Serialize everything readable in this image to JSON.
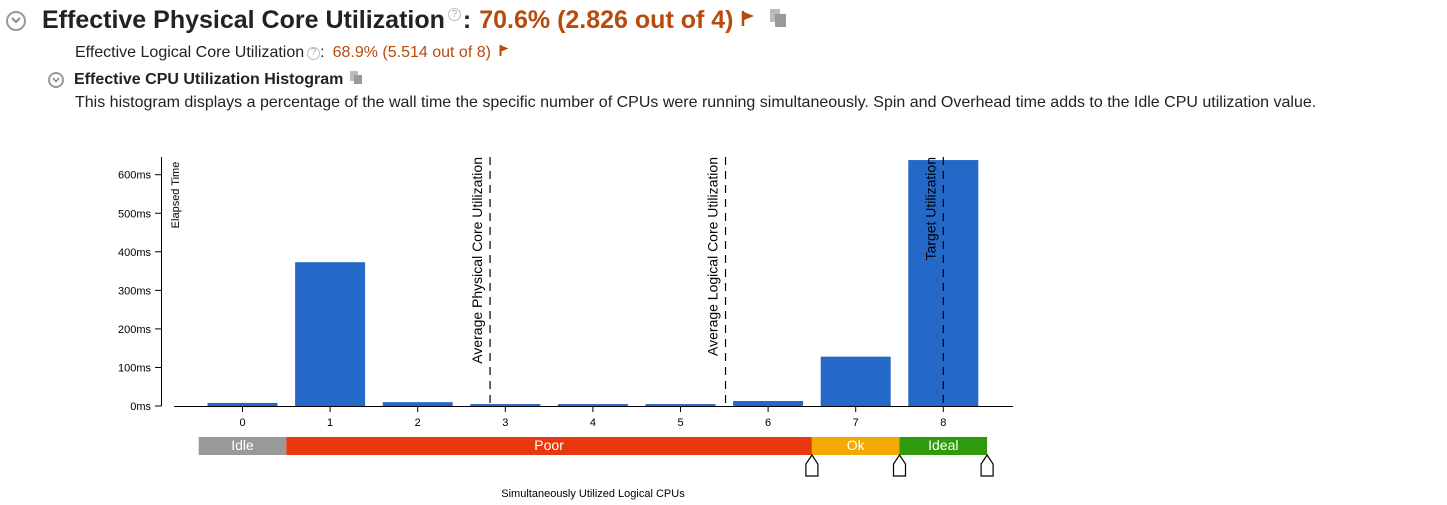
{
  "header": {
    "title": "Effective Physical Core Utilization",
    "colon": ":",
    "value": "70.6% (2.826 out of 4)",
    "help_glyph": "?",
    "value_color": "#b84a0c"
  },
  "logical": {
    "label": "Effective Logical Core Utilization",
    "colon": ":",
    "value": "68.9% (5.514 out of 8)"
  },
  "histogram": {
    "title": "Effective CPU Utilization Histogram",
    "description": "This histogram displays a percentage of the wall time the specific number of CPUs were running simultaneously. Spin and Overhead time adds to the Idle CPU utilization value."
  },
  "chart_data": {
    "type": "bar",
    "categories": [
      "0",
      "1",
      "2",
      "3",
      "4",
      "5",
      "6",
      "7",
      "8"
    ],
    "values": [
      8,
      373,
      10,
      5,
      5,
      5,
      13,
      128,
      638
    ],
    "ylabel": "Elapsed Time",
    "xlabel": "Simultaneously Utilized Logical CPUs",
    "yticks": [
      "0ms",
      "100ms",
      "200ms",
      "300ms",
      "400ms",
      "500ms",
      "600ms"
    ],
    "ylim": [
      0,
      650
    ],
    "bar_color": "#2468c8",
    "markers": [
      {
        "label": "Average Physical Core Utilization",
        "x": 2.826
      },
      {
        "label": "Average Logical Core Utilization",
        "x": 5.514
      },
      {
        "label": "Target Utilization",
        "x": 8
      }
    ],
    "bands": [
      {
        "label": "Idle",
        "from": -0.5,
        "to": 0.5,
        "color": "#999999"
      },
      {
        "label": "Poor",
        "from": 0.5,
        "to": 6.5,
        "color": "#e8380f"
      },
      {
        "label": "Ok",
        "from": 6.5,
        "to": 7.5,
        "color": "#f2a900"
      },
      {
        "label": "Ideal",
        "from": 7.5,
        "to": 8.5,
        "color": "#2f9a0c"
      }
    ],
    "band_handles": [
      6.5,
      7.5,
      8.5
    ]
  }
}
